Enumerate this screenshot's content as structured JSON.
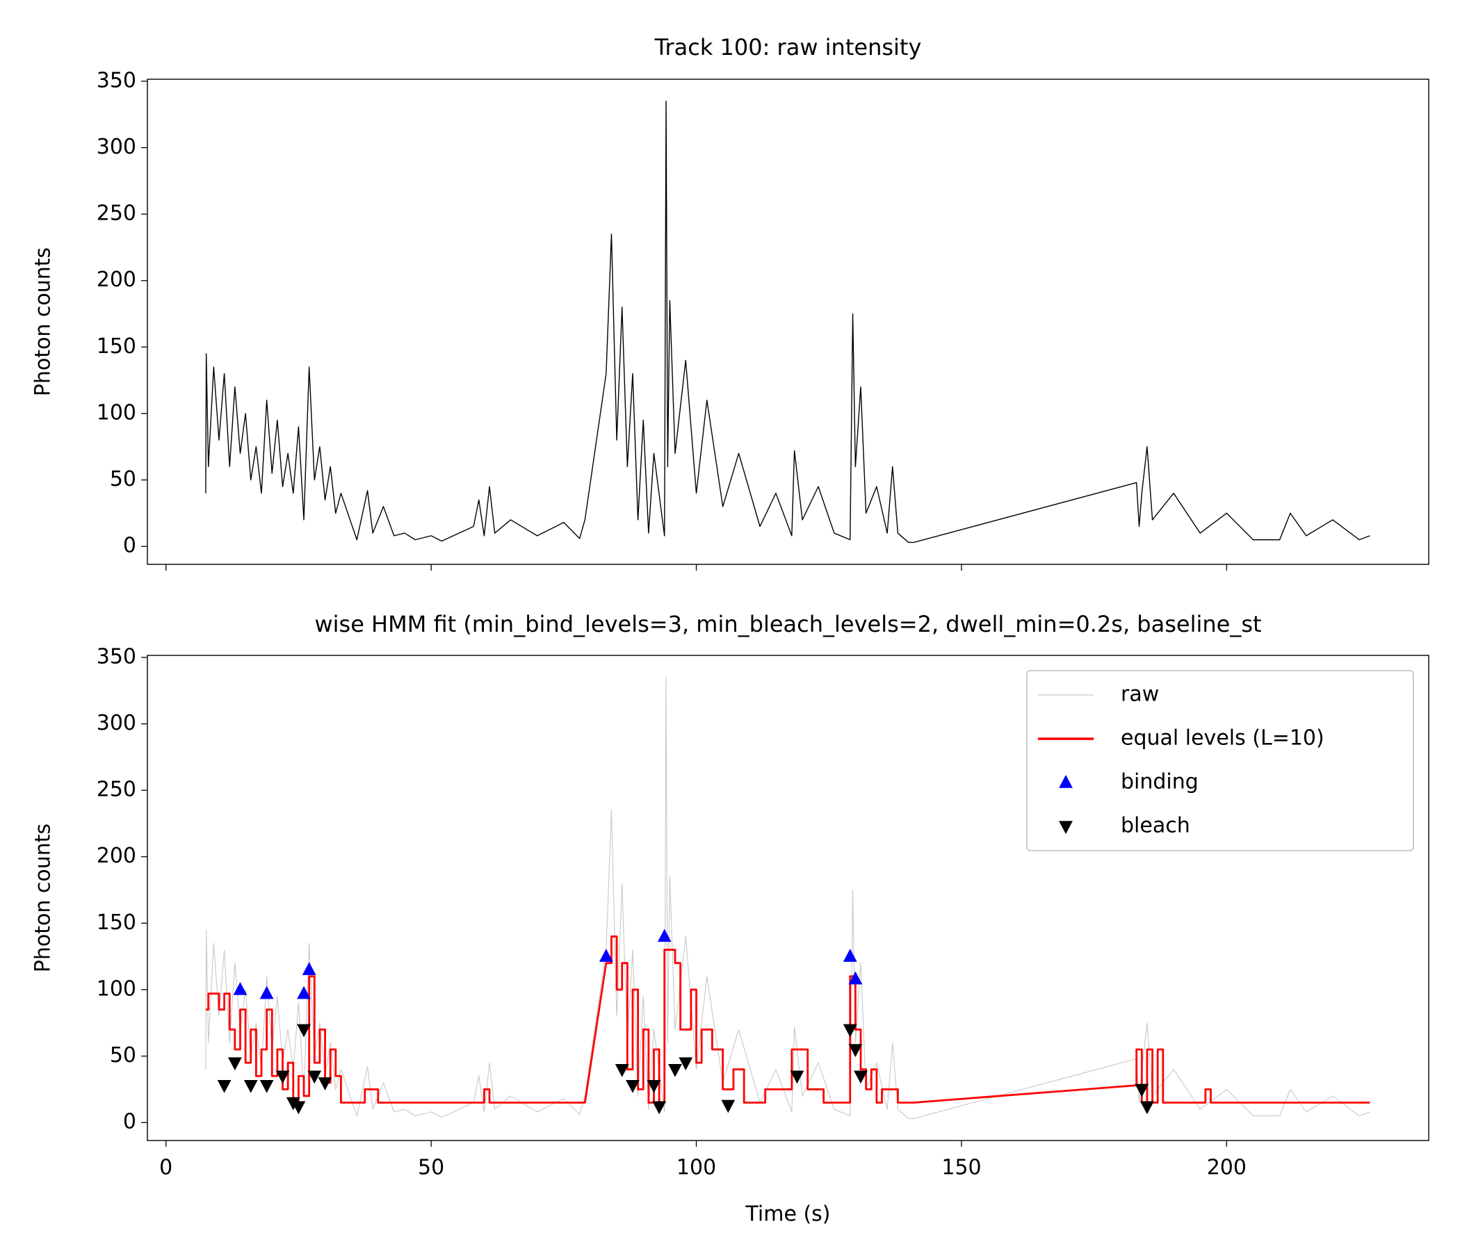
{
  "chart_data": [
    {
      "type": "line",
      "title": "Track 100: raw intensity",
      "ylabel": "Photon counts",
      "xlim": [
        -3.5,
        238.1
      ],
      "ylim": [
        -13.5,
        351.5
      ],
      "xticks": [
        0,
        50,
        100,
        150,
        200
      ],
      "xtick_labels": false,
      "yticks": [
        0,
        50,
        100,
        150,
        200,
        250,
        300,
        350
      ],
      "series": [
        {
          "color": "#000000",
          "style": "line",
          "x": [
            7.5,
            7.6,
            8,
            9,
            10,
            11,
            12,
            13,
            14,
            15,
            16,
            17,
            18,
            19,
            20,
            21,
            22,
            23,
            24,
            25,
            26,
            27,
            28,
            29,
            30,
            31,
            32,
            33,
            36,
            38,
            39,
            41,
            43,
            45,
            47,
            50,
            52,
            58,
            59,
            60,
            61,
            62,
            65,
            70,
            75,
            78,
            79,
            83,
            84,
            85,
            86,
            87,
            88,
            89,
            90,
            91,
            92,
            94,
            94.3,
            94.6,
            95,
            96,
            98,
            100,
            102,
            105,
            108,
            112,
            115,
            118,
            118.5,
            120,
            123,
            126,
            129,
            129.5,
            130,
            131,
            132,
            134,
            136,
            137,
            138,
            140,
            141,
            183,
            183.5,
            184,
            185,
            186,
            190,
            195,
            200,
            205,
            210,
            212,
            215,
            220,
            225,
            227
          ],
          "values": [
            40,
            145,
            60,
            135,
            80,
            130,
            60,
            120,
            70,
            100,
            50,
            75,
            40,
            110,
            55,
            95,
            45,
            70,
            40,
            90,
            20,
            135,
            50,
            75,
            35,
            60,
            25,
            40,
            5,
            42,
            10,
            30,
            8,
            10,
            5,
            8,
            4,
            15,
            35,
            8,
            45,
            10,
            20,
            8,
            18,
            6,
            20,
            130,
            235,
            80,
            180,
            60,
            130,
            20,
            95,
            10,
            70,
            8,
            335,
            60,
            185,
            70,
            140,
            40,
            110,
            30,
            70,
            15,
            40,
            8,
            72,
            20,
            45,
            10,
            5,
            175,
            60,
            120,
            25,
            45,
            10,
            60,
            10,
            3,
            3,
            48,
            15,
            40,
            75,
            20,
            40,
            10,
            25,
            5,
            5,
            25,
            8,
            20,
            5,
            8
          ]
        }
      ]
    },
    {
      "type": "line",
      "title": "wise HMM fit (min_bind_levels=3, min_bleach_levels=2, dwell_min=0.2s, baseline_st",
      "xlabel": "Time (s)",
      "ylabel": "Photon counts",
      "xlim": [
        -3.5,
        238.1
      ],
      "ylim": [
        -13.5,
        351.5
      ],
      "xticks": [
        0,
        50,
        100,
        150,
        200
      ],
      "xtick_labels": true,
      "yticks": [
        0,
        50,
        100,
        150,
        200,
        250,
        300,
        350
      ],
      "legend": "upper right",
      "series": [
        {
          "name": "raw",
          "color": "#c8c8c8",
          "style": "line",
          "x": [
            7.5,
            7.6,
            8,
            9,
            10,
            11,
            12,
            13,
            14,
            15,
            16,
            17,
            18,
            19,
            20,
            21,
            22,
            23,
            24,
            25,
            26,
            27,
            28,
            29,
            30,
            31,
            32,
            33,
            36,
            38,
            39,
            41,
            43,
            45,
            47,
            50,
            52,
            58,
            59,
            60,
            61,
            62,
            65,
            70,
            75,
            78,
            79,
            83,
            84,
            85,
            86,
            87,
            88,
            89,
            90,
            91,
            92,
            94,
            94.3,
            94.6,
            95,
            96,
            98,
            100,
            102,
            105,
            108,
            112,
            115,
            118,
            118.5,
            120,
            123,
            126,
            129,
            129.5,
            130,
            131,
            132,
            134,
            136,
            137,
            138,
            140,
            141,
            183,
            183.5,
            184,
            185,
            186,
            190,
            195,
            200,
            205,
            210,
            212,
            215,
            220,
            225,
            227
          ],
          "values": [
            40,
            145,
            60,
            135,
            80,
            130,
            60,
            120,
            70,
            100,
            50,
            75,
            40,
            110,
            55,
            95,
            45,
            70,
            40,
            90,
            20,
            135,
            50,
            75,
            35,
            60,
            25,
            40,
            5,
            42,
            10,
            30,
            8,
            10,
            5,
            8,
            4,
            15,
            35,
            8,
            45,
            10,
            20,
            8,
            18,
            6,
            20,
            130,
            235,
            80,
            180,
            60,
            130,
            20,
            95,
            10,
            70,
            8,
            335,
            60,
            185,
            70,
            140,
            40,
            110,
            30,
            70,
            15,
            40,
            8,
            72,
            20,
            45,
            10,
            5,
            175,
            60,
            120,
            25,
            45,
            10,
            60,
            10,
            3,
            3,
            48,
            15,
            40,
            75,
            20,
            40,
            10,
            25,
            5,
            5,
            25,
            8,
            20,
            5,
            8
          ]
        },
        {
          "name": "equal levels (L=10)",
          "color": "#ff0000",
          "style": "line",
          "x": [
            7.5,
            8,
            8,
            10,
            10,
            11,
            11,
            12,
            12,
            13,
            13,
            14,
            14,
            15,
            15,
            16,
            16,
            17,
            17,
            18,
            18,
            19,
            19,
            20,
            20,
            21,
            21,
            22,
            22,
            23,
            23,
            24,
            24,
            25,
            25,
            26,
            26,
            27,
            27,
            28,
            28,
            29,
            29,
            30,
            30,
            31,
            31,
            32,
            32,
            33,
            33,
            37.5,
            37.5,
            40,
            40,
            60,
            60,
            61,
            61,
            79,
            83,
            84,
            84,
            85,
            85,
            86,
            86,
            87,
            87,
            88,
            88,
            89,
            89,
            90,
            90,
            91,
            91,
            92,
            92,
            93,
            93,
            94,
            94,
            96,
            96,
            97,
            97,
            99,
            99,
            100,
            100,
            101,
            101,
            103,
            103,
            105,
            105,
            107,
            107,
            109,
            109,
            113,
            113,
            118,
            118,
            121,
            121,
            124,
            124,
            129,
            129,
            130,
            130,
            131,
            131,
            132,
            132,
            133,
            133,
            134,
            134,
            135,
            135,
            138,
            138,
            141,
            183,
            183,
            184,
            184,
            185,
            185,
            186,
            186,
            187,
            187,
            188,
            188,
            196,
            196,
            197,
            197,
            227
          ],
          "values": [
            85,
            85,
            97,
            97,
            85,
            85,
            97,
            97,
            70,
            70,
            55,
            55,
            85,
            85,
            45,
            45,
            70,
            70,
            35,
            35,
            55,
            55,
            85,
            85,
            35,
            35,
            55,
            55,
            25,
            25,
            45,
            45,
            15,
            15,
            35,
            35,
            20,
            20,
            110,
            110,
            45,
            45,
            70,
            70,
            30,
            30,
            55,
            55,
            35,
            35,
            15,
            15,
            25,
            25,
            15,
            15,
            25,
            25,
            15,
            15,
            120,
            120,
            140,
            140,
            100,
            100,
            120,
            120,
            40,
            40,
            100,
            100,
            25,
            25,
            70,
            70,
            15,
            15,
            55,
            55,
            15,
            15,
            130,
            130,
            120,
            120,
            70,
            70,
            100,
            100,
            45,
            45,
            70,
            70,
            55,
            55,
            25,
            25,
            40,
            40,
            15,
            15,
            25,
            25,
            55,
            55,
            25,
            25,
            15,
            15,
            110,
            110,
            70,
            70,
            40,
            40,
            25,
            25,
            40,
            40,
            15,
            15,
            25,
            25,
            15,
            15,
            28,
            55,
            55,
            15,
            15,
            55,
            55,
            15,
            15,
            55,
            55,
            15,
            15,
            25,
            25,
            15,
            15
          ]
        },
        {
          "name": "binding",
          "color": "#0000ff",
          "style": "triangle-up",
          "x": [
            14,
            19,
            26,
            27,
            83,
            94,
            129,
            130
          ],
          "values": [
            100,
            97,
            97,
            115,
            125,
            140,
            125,
            108
          ]
        },
        {
          "name": "bleach",
          "color": "#000000",
          "style": "triangle-down",
          "x": [
            11,
            13,
            16,
            19,
            22,
            24,
            25,
            26,
            28,
            30,
            86,
            88,
            92,
            93,
            96,
            98,
            106,
            119,
            129,
            130,
            131,
            184,
            185
          ],
          "values": [
            28,
            45,
            28,
            28,
            35,
            15,
            12,
            70,
            35,
            30,
            40,
            28,
            28,
            12,
            40,
            45,
            13,
            35,
            70,
            55,
            35,
            25,
            12
          ]
        }
      ]
    }
  ]
}
